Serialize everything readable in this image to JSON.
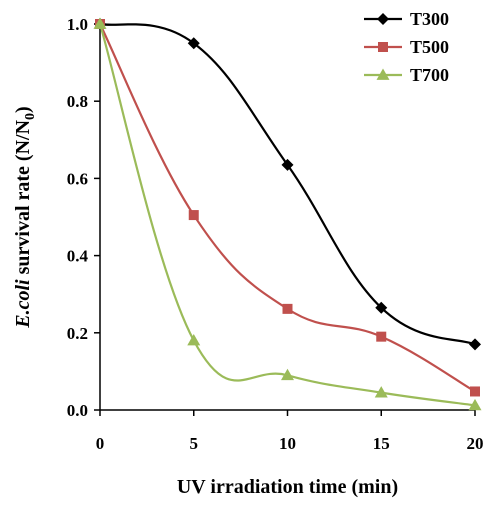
{
  "chart_data": {
    "type": "line",
    "title": "",
    "xlabel": "UV irradiation time (min)",
    "ylabel_prefix": "E.coli",
    "ylabel_suffix": " survival rate (N/N",
    "ylabel_sub": "0",
    "ylabel_close": ")",
    "x": [
      0,
      5,
      10,
      15,
      20
    ],
    "x_ticks": [
      "0",
      "5",
      "10",
      "15",
      "20"
    ],
    "y_ticks": [
      "0.0",
      "0.2",
      "0.4",
      "0.6",
      "0.8",
      "1.0"
    ],
    "xlim": [
      0,
      20
    ],
    "ylim": [
      0,
      1.0
    ],
    "grid": false,
    "legend_position": "top-right",
    "series": [
      {
        "name": "T300",
        "values": [
          1.0,
          0.95,
          0.635,
          0.265,
          0.17
        ],
        "color": "#000000",
        "marker": "diamond"
      },
      {
        "name": "T500",
        "values": [
          1.0,
          0.505,
          0.262,
          0.19,
          0.048
        ],
        "color": "#c0504d",
        "marker": "square"
      },
      {
        "name": "T700",
        "values": [
          1.0,
          0.18,
          0.09,
          0.045,
          0.012
        ],
        "color": "#9bbb59",
        "marker": "triangle"
      }
    ]
  }
}
